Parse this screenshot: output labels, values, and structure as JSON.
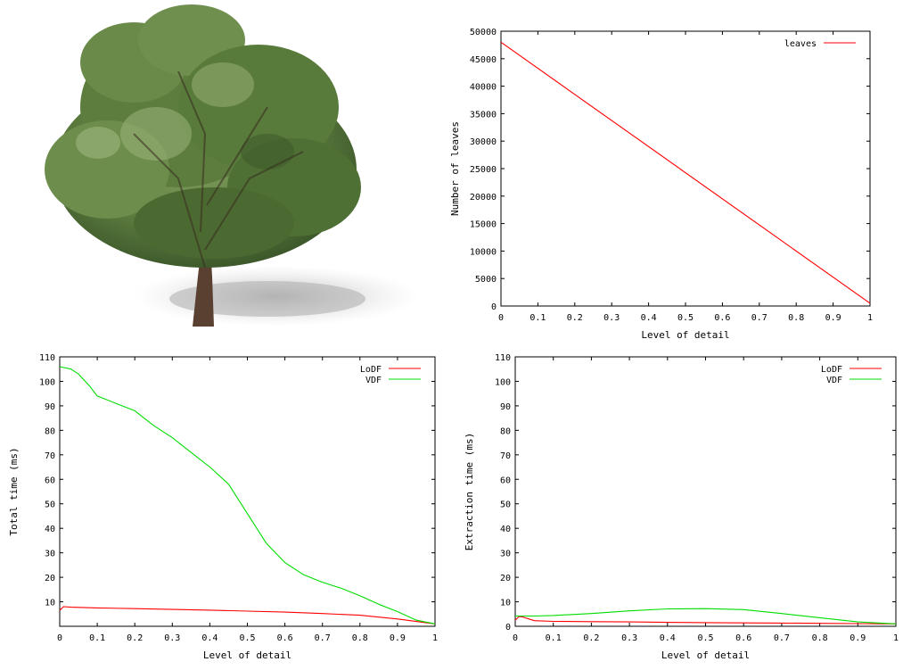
{
  "image": {
    "subject": "tree-render",
    "colors": {
      "trunk": "#5a4030",
      "foliage_dark": "#3e5a2c",
      "foliage_mid": "#6a8a4a",
      "foliage_light": "#9db57a",
      "shadow": "#bdbdbd"
    }
  },
  "chart_data": [
    {
      "type": "line",
      "xlabel": "Level of detail",
      "ylabel": "Number of leaves",
      "xlim": [
        0,
        1
      ],
      "ylim": [
        0,
        50000
      ],
      "xticks": [
        "0",
        "0.1",
        "0.2",
        "0.3",
        "0.4",
        "0.5",
        "0.6",
        "0.7",
        "0.8",
        "0.9",
        "1"
      ],
      "yticks": [
        "0",
        "5000",
        "10000",
        "15000",
        "20000",
        "25000",
        "30000",
        "35000",
        "40000",
        "45000",
        "50000"
      ],
      "legend_position": "top-right",
      "grid": false,
      "series": [
        {
          "name": "leaves",
          "color": "#ff0000",
          "x": [
            0,
            1
          ],
          "y": [
            48000,
            500
          ]
        }
      ]
    },
    {
      "type": "line",
      "xlabel": "Level of detail",
      "ylabel": "Total time (ms)",
      "xlim": [
        0,
        1
      ],
      "ylim": [
        0,
        110
      ],
      "xticks": [
        "0",
        "0.1",
        "0.2",
        "0.3",
        "0.4",
        "0.5",
        "0.6",
        "0.7",
        "0.8",
        "0.9",
        "1"
      ],
      "yticks": [
        "10",
        "20",
        "30",
        "40",
        "50",
        "60",
        "70",
        "80",
        "90",
        "100",
        "110"
      ],
      "legend_position": "top-right",
      "grid": false,
      "series": [
        {
          "name": "LoDF",
          "color": "#ff0000",
          "x": [
            0,
            0.01,
            0.03,
            0.1,
            0.2,
            0.3,
            0.4,
            0.5,
            0.6,
            0.7,
            0.8,
            0.9,
            1.0
          ],
          "y": [
            6.5,
            8,
            7.8,
            7.5,
            7.2,
            6.9,
            6.6,
            6.2,
            5.8,
            5.2,
            4.5,
            3,
            1
          ]
        },
        {
          "name": "VDF",
          "color": "#00dd00",
          "x": [
            0,
            0.03,
            0.05,
            0.08,
            0.1,
            0.15,
            0.2,
            0.25,
            0.3,
            0.35,
            0.4,
            0.45,
            0.5,
            0.55,
            0.6,
            0.65,
            0.7,
            0.75,
            0.8,
            0.85,
            0.9,
            0.95,
            1.0
          ],
          "y": [
            106,
            105,
            103,
            98,
            94,
            91,
            88,
            82,
            77,
            71,
            65,
            58,
            46,
            34,
            26,
            21,
            18,
            15.5,
            12.5,
            9,
            6,
            2.5,
            1
          ]
        }
      ]
    },
    {
      "type": "line",
      "xlabel": "Level of detail",
      "ylabel": "Extraction time (ms)",
      "xlim": [
        0,
        1
      ],
      "ylim": [
        0,
        110
      ],
      "xticks": [
        "0",
        "0.1",
        "0.2",
        "0.3",
        "0.4",
        "0.5",
        "0.6",
        "0.7",
        "0.8",
        "0.9",
        "1"
      ],
      "yticks": [
        "0",
        "10",
        "20",
        "30",
        "40",
        "50",
        "60",
        "70",
        "80",
        "90",
        "100",
        "110"
      ],
      "legend_position": "top-right",
      "grid": false,
      "series": [
        {
          "name": "LoDF",
          "color": "#ff0000",
          "x": [
            0,
            0.01,
            0.02,
            0.05,
            0.1,
            0.2,
            0.3,
            0.4,
            0.5,
            0.6,
            0.7,
            0.8,
            0.9,
            1.0
          ],
          "y": [
            2.5,
            4,
            3.8,
            2.3,
            2.0,
            1.9,
            1.8,
            1.6,
            1.5,
            1.4,
            1.3,
            1.2,
            1.1,
            1.0
          ]
        },
        {
          "name": "VDF",
          "color": "#00dd00",
          "x": [
            0,
            0.05,
            0.1,
            0.2,
            0.3,
            0.4,
            0.5,
            0.6,
            0.7,
            0.8,
            0.9,
            1.0
          ],
          "y": [
            4.2,
            4.2,
            4.4,
            5.2,
            6.3,
            7.1,
            7.2,
            6.8,
            5.2,
            3.5,
            1.8,
            1.0
          ]
        }
      ]
    }
  ]
}
